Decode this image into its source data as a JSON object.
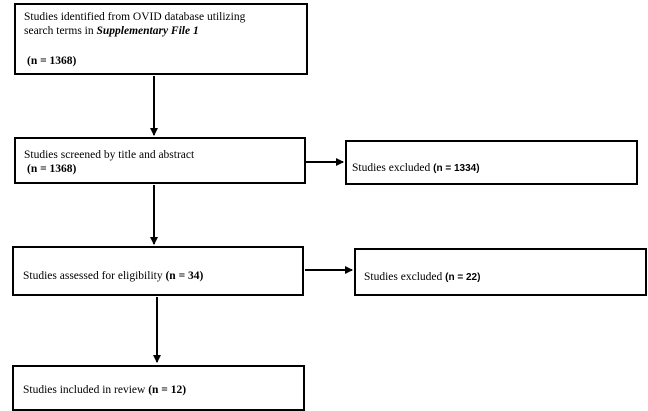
{
  "box1": {
    "line1": "Studies identified from OVID database utilizing",
    "line2_prefix": "search terms in ",
    "line2_emph": "Supplementary File 1",
    "count": "(n = 1368)"
  },
  "box2": {
    "text": "Studies screened by title and abstract",
    "count": "(n = 1368)"
  },
  "box3": {
    "text": "Studies assessed for eligibility ",
    "count": "(n = 34)"
  },
  "box4": {
    "text": "Studies included in review ",
    "count": "(n = 12)"
  },
  "excluded1": {
    "text": "Studies excluded ",
    "count": "(n = 1334)"
  },
  "excluded2": {
    "text": "Studies excluded ",
    "count": "(n = 22)"
  }
}
